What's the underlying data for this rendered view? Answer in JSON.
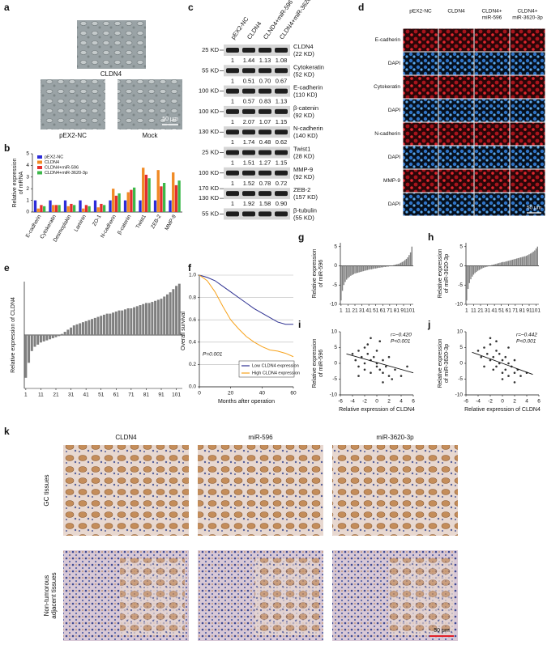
{
  "panel_letters": [
    "a",
    "b",
    "c",
    "d",
    "e",
    "f",
    "g",
    "h",
    "i",
    "j",
    "k"
  ],
  "panel_a": {
    "labels": [
      "CLDN4",
      "pEX2-NC",
      "Mock"
    ],
    "scale_bar": "50 μm"
  },
  "panel_c": {
    "lanes": [
      "pEX2-NC",
      "CLDN4",
      "CLND4+miR-596",
      "CLDN4+miR-3620-3p"
    ],
    "rows": [
      {
        "markers": [
          "25 KD"
        ],
        "name": [
          "CLDN4",
          "(22 KD)"
        ],
        "values": [
          "1",
          "1.44",
          "1.13",
          "1.08"
        ]
      },
      {
        "markers": [
          "55 KD"
        ],
        "name": [
          "Cytokeratin",
          "(52 KD)"
        ],
        "values": [
          "1",
          "0.51",
          "0.70",
          "0.67"
        ]
      },
      {
        "markers": [
          "100 KD"
        ],
        "name": [
          "E-cadherin",
          "(110 KD)"
        ],
        "values": [
          "1",
          "0.57",
          "0.83",
          "1.13"
        ]
      },
      {
        "markers": [
          "100 KD"
        ],
        "name": [
          "β-catenin",
          "(92 KD)"
        ],
        "values": [
          "1",
          "2.07",
          "1.07",
          "1.15"
        ]
      },
      {
        "markers": [
          "130 KD"
        ],
        "name": [
          "N-cadherin",
          "(140 KD)"
        ],
        "values": [
          "1",
          "1.74",
          "0.48",
          "0.62"
        ]
      },
      {
        "markers": [
          "25 KD"
        ],
        "name": [
          "Twist1",
          "(28 KD)"
        ],
        "values": [
          "1",
          "1.51",
          "1.27",
          "1.15"
        ]
      },
      {
        "markers": [
          "100 KD"
        ],
        "name": [
          "MMP-9",
          "(92 KD)"
        ],
        "values": [
          "1",
          "1.52",
          "0.78",
          "0.72"
        ]
      },
      {
        "markers": [
          "170 KD",
          "130 KD"
        ],
        "name": [
          "ZEB-2",
          "(157 KD)"
        ],
        "values": [
          "1",
          "1.92",
          "1.58",
          "0.90"
        ]
      },
      {
        "markers": [
          "55 KD"
        ],
        "name": [
          "β-tubulin",
          "(55 KD)"
        ]
      }
    ]
  },
  "panel_d": {
    "headers": [
      [
        "pEX2-NC"
      ],
      [
        "CLDN4"
      ],
      [
        "CLDN4+",
        "miR-596"
      ],
      [
        "CLDN4+",
        "miR-3620-3p"
      ]
    ],
    "rows": [
      "E-cadherin",
      "DAPI",
      "Cytokeratin",
      "DAPI",
      "N-cadherin",
      "DAPI",
      "MMP-9",
      "DAPI"
    ],
    "scale_bar": "50 μm"
  },
  "panel_k": {
    "headers": [
      "CLDN4",
      "miR-596",
      "miR-3620-3p"
    ],
    "rows": [
      [
        "GC tissues"
      ],
      [
        "Non-tumorous",
        "adjacent tissues"
      ]
    ],
    "scale_bar": "50 μm"
  },
  "chart_data": [
    {
      "type": "bar",
      "y_label": [
        "Relative expression",
        "of mRNA"
      ],
      "categories": [
        "E-cadherin",
        "Cytokeratin",
        "Desmoplakin",
        "Laminin",
        "ZO-1",
        "N-cadherin",
        "β-catenin",
        "Twist1",
        "ZEB-2",
        "MMP-9"
      ],
      "series": [
        {
          "name": "pEX2-NC",
          "color": "#2b2bd9",
          "values": [
            1,
            1,
            1,
            1,
            1,
            1,
            1,
            1,
            1,
            1
          ]
        },
        {
          "name": "CLDN4",
          "color": "#f08a24",
          "values": [
            0.3,
            0.6,
            0.5,
            0.3,
            0.4,
            2.0,
            1.7,
            3.8,
            3.6,
            3.4
          ]
        },
        {
          "name": "CLDN4+miR-596",
          "color": "#e52e2e",
          "values": [
            0.6,
            0.6,
            0.7,
            0.6,
            0.7,
            1.4,
            1.9,
            3.2,
            2.2,
            2.3
          ]
        },
        {
          "name": "CLDN4+miR-3620-3p",
          "color": "#3cb84a",
          "values": [
            0.5,
            0.6,
            0.6,
            0.5,
            0.6,
            1.6,
            2.1,
            2.9,
            2.5,
            2.7
          ]
        }
      ],
      "ylim": [
        0,
        5
      ],
      "yticks": [
        0,
        1,
        2,
        3,
        4,
        5
      ],
      "legend": "upper left"
    },
    {
      "type": "bar",
      "y_label": [
        "Relative expression of CLDN4"
      ],
      "color": "#7f7f7f",
      "x": [
        1,
        3,
        5,
        7,
        9,
        11,
        13,
        15,
        17,
        19,
        21,
        23,
        25,
        27,
        29,
        31,
        33,
        35,
        37,
        39,
        41,
        43,
        45,
        47,
        49,
        51,
        53,
        55,
        57,
        59,
        61,
        63,
        65,
        67,
        69,
        71,
        73,
        75,
        77,
        79,
        81,
        83,
        85,
        87,
        89,
        91,
        93,
        95,
        97,
        99,
        101,
        103
      ],
      "values": [
        -4.0,
        -2.6,
        -1.5,
        -1.1,
        -0.9,
        -0.7,
        -0.6,
        -0.5,
        -0.4,
        -0.3,
        -0.2,
        -0.1,
        0.1,
        0.3,
        0.5,
        0.7,
        0.9,
        1.0,
        1.1,
        1.2,
        1.3,
        1.4,
        1.5,
        1.6,
        1.7,
        1.8,
        1.9,
        2.0,
        2.0,
        2.1,
        2.2,
        2.3,
        2.3,
        2.4,
        2.5,
        2.5,
        2.6,
        2.7,
        2.8,
        2.9,
        3.0,
        3.0,
        3.1,
        3.2,
        3.3,
        3.4,
        3.6,
        3.8,
        4.0,
        4.3,
        4.6,
        4.8
      ],
      "xlim": [
        0,
        105
      ],
      "xticks": [
        1,
        11,
        21,
        31,
        41,
        51,
        61,
        71,
        81,
        91,
        101
      ],
      "ylim": [
        -5,
        5
      ]
    },
    {
      "type": "line",
      "x_label": "Months after operation",
      "y_label": [
        "Overall survival"
      ],
      "x": [
        0,
        5,
        10,
        15,
        20,
        25,
        30,
        35,
        40,
        45,
        50,
        55,
        60
      ],
      "series": [
        {
          "name": "Low CLDN4 expression",
          "color": "#2e3192",
          "values": [
            1.0,
            0.98,
            0.95,
            0.9,
            0.85,
            0.8,
            0.75,
            0.7,
            0.66,
            0.62,
            0.58,
            0.56,
            0.56
          ]
        },
        {
          "name": "High CLDN4 expression",
          "color": "#f7a21b",
          "values": [
            1.0,
            0.95,
            0.85,
            0.72,
            0.6,
            0.52,
            0.45,
            0.4,
            0.36,
            0.33,
            0.32,
            0.3,
            0.27
          ]
        }
      ],
      "xlim": [
        0,
        60
      ],
      "xticks": [
        0,
        20,
        40,
        60
      ],
      "ylim": [
        0,
        1
      ],
      "yticks": [
        {
          "value": 0,
          "label": "0.0"
        },
        0.2,
        0.4,
        0.6,
        0.8,
        {
          "value": 1,
          "label": "1.0"
        }
      ],
      "grid": true,
      "legend": "lower right",
      "annotations": [
        "P=0.001"
      ]
    },
    {
      "type": "bar",
      "y_label": [
        "Relative expression",
        "of miR-596"
      ],
      "color": "#7f7f7f",
      "x": [
        1,
        3,
        5,
        7,
        9,
        11,
        13,
        15,
        17,
        19,
        21,
        23,
        25,
        27,
        29,
        31,
        33,
        35,
        37,
        39,
        41,
        43,
        45,
        47,
        49,
        51,
        53,
        55,
        57,
        59,
        61,
        63,
        65,
        67,
        69,
        71,
        73,
        75,
        77,
        79,
        81,
        83,
        85,
        87,
        89,
        91,
        93,
        95,
        97,
        99,
        101,
        103
      ],
      "values": [
        -9.0,
        -6.5,
        -5.0,
        -4.2,
        -3.6,
        -3.2,
        -2.9,
        -2.6,
        -2.4,
        -2.2,
        -2.0,
        -1.9,
        -1.8,
        -1.7,
        -1.6,
        -1.5,
        -1.4,
        -1.3,
        -1.2,
        -1.1,
        -1.0,
        -0.9,
        -0.9,
        -0.8,
        -0.7,
        -0.7,
        -0.6,
        -0.5,
        -0.5,
        -0.4,
        -0.4,
        -0.3,
        -0.3,
        -0.2,
        -0.2,
        -0.1,
        -0.1,
        0.1,
        0.2,
        0.3,
        0.4,
        0.5,
        0.6,
        0.8,
        1.0,
        1.2,
        1.5,
        1.8,
        2.2,
        2.8,
        3.5,
        5.0
      ],
      "xlim": [
        0,
        105
      ],
      "xticks": [
        1,
        11,
        21,
        31,
        41,
        51,
        61,
        71,
        81,
        91,
        101
      ],
      "ylim": [
        -10,
        6
      ],
      "yticks": [
        5,
        0,
        -5,
        -10
      ]
    },
    {
      "type": "bar",
      "y_label": [
        "Relative expression",
        "of miR-3620-3p"
      ],
      "color": "#7f7f7f",
      "x": [
        1,
        3,
        5,
        7,
        9,
        11,
        13,
        15,
        17,
        19,
        21,
        23,
        25,
        27,
        29,
        31,
        33,
        35,
        37,
        39,
        41,
        43,
        45,
        47,
        49,
        51,
        53,
        55,
        57,
        59,
        61,
        63,
        65,
        67,
        69,
        71,
        73,
        75,
        77,
        79,
        81,
        83,
        85,
        87,
        89,
        91,
        93,
        95,
        97,
        99,
        101,
        103
      ],
      "values": [
        -9.0,
        -6.0,
        -4.5,
        -3.5,
        -2.8,
        -2.3,
        -1.9,
        -1.6,
        -1.3,
        -1.1,
        -0.9,
        -0.7,
        -0.5,
        -0.4,
        -0.3,
        -0.2,
        -0.1,
        0.1,
        0.2,
        0.3,
        0.4,
        0.5,
        0.6,
        0.7,
        0.8,
        0.9,
        1.0,
        1.0,
        1.1,
        1.2,
        1.3,
        1.4,
        1.5,
        1.6,
        1.7,
        1.8,
        1.9,
        2.0,
        2.1,
        2.2,
        2.3,
        2.4,
        2.5,
        2.6,
        2.8,
        3.0,
        3.2,
        3.4,
        3.7,
        4.0,
        4.5,
        5.0
      ],
      "xlim": [
        0,
        105
      ],
      "xticks": [
        1,
        11,
        21,
        31,
        41,
        51,
        61,
        71,
        81,
        91,
        101
      ],
      "ylim": [
        -10,
        6
      ],
      "yticks": [
        5,
        0,
        -5,
        -10
      ]
    },
    {
      "type": "scatter",
      "x_label": "Relative expression of CLDN4",
      "y_label": [
        "Relative expression",
        "of miR-596"
      ],
      "color": "#333333",
      "x": [
        -4,
        -3.5,
        -3,
        -3,
        -2.5,
        -2,
        -2,
        -2,
        -1.5,
        -1,
        -1,
        -1,
        -0.5,
        0,
        0,
        0,
        0.5,
        1,
        1,
        1.5,
        2,
        2,
        3,
        4,
        5,
        -1.5,
        0.5,
        -3,
        2.5,
        1
      ],
      "y": [
        3,
        1,
        4,
        -1,
        2,
        5,
        0,
        -2,
        3,
        1,
        -3,
        8,
        2,
        0,
        -1,
        4,
        -2,
        1,
        -3,
        -1,
        -4,
        2,
        -2,
        -4,
        -1,
        6,
        7,
        -4,
        -5,
        -6
      ],
      "fit": {
        "x": [
          -5,
          6
        ],
        "y": [
          3,
          -3
        ]
      },
      "xlim": [
        -6,
        6
      ],
      "xticks": [
        -6,
        -4,
        -2,
        0,
        2,
        4,
        6
      ],
      "ylim": [
        -10,
        10
      ],
      "yticks": [
        -10,
        -5,
        0,
        5,
        10
      ],
      "annotations": [
        "r=–0.420",
        "P<0.001"
      ]
    },
    {
      "type": "scatter",
      "x_label": "Relative expression of CLDN4",
      "y_label": [
        "Relative expression",
        "of miR-3620-3p"
      ],
      "color": "#333333",
      "x": [
        -4,
        -3.5,
        -3,
        -3,
        -2.5,
        -2,
        -2,
        -1.5,
        -1.5,
        -1,
        -1,
        -0.5,
        -0.5,
        0,
        0,
        0.5,
        0.5,
        1,
        1,
        1.5,
        2,
        2,
        2.5,
        3,
        4,
        -2,
        -1,
        0,
        1,
        2
      ],
      "y": [
        4,
        2,
        5,
        -1,
        3,
        6,
        1,
        2,
        -2,
        4,
        -1,
        3,
        0,
        1,
        -3,
        2,
        -2,
        0,
        -4,
        -1,
        -3,
        1,
        -2,
        -4,
        -3,
        8,
        7,
        -5,
        5,
        -6
      ],
      "fit": {
        "x": [
          -5,
          5
        ],
        "y": [
          3.5,
          -3.5
        ]
      },
      "xlim": [
        -6,
        6
      ],
      "xticks": [
        -6,
        -4,
        -2,
        0,
        2,
        4,
        6
      ],
      "ylim": [
        -10,
        10
      ],
      "yticks": [
        -10,
        -5,
        0,
        5,
        10
      ],
      "annotations": [
        "r=–0.442",
        "P<0.001"
      ]
    }
  ]
}
